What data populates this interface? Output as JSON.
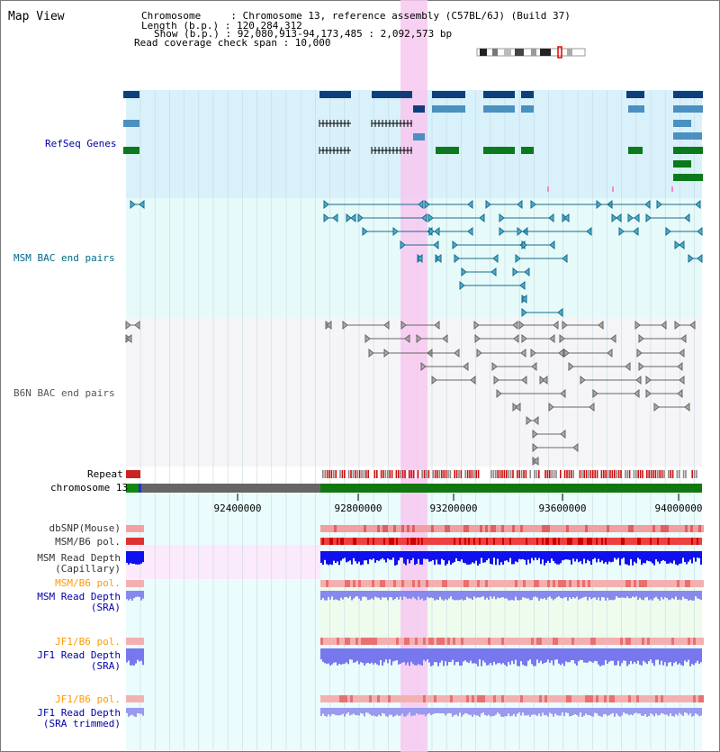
{
  "header": {
    "title": "Map View",
    "chromosome_line": "Chromosome     : Chromosome 13, reference assembly (C57BL/6J) (Build 37)",
    "length_line": "Length (b.p.) : 120,284,312",
    "show_line": "Show (b.p.) : 92,080,913-94,173,485 : 2,092,573 bp",
    "span_line": "Read coverage check span : 10,000"
  },
  "tracks": {
    "refseq": "RefSeq Genes",
    "msm_bac": "MSM BAC end pairs",
    "b6n_bac": "B6N BAC end pairs",
    "repeat": "Repeat",
    "chromosome": "chromosome 13",
    "dbsnp": "dbSNP(Mouse)",
    "msm_b6_pol": "MSM/B6 pol.",
    "msm_read_depth_cap_1": "MSM Read Depth",
    "msm_read_depth_cap_2": "(Capillary)",
    "msm_b6_pol_2": "MSM/B6 pol.",
    "msm_read_depth_sra_1": "MSM Read Depth",
    "msm_read_depth_sra_2": "(SRA)",
    "jf1_b6_pol": "JF1/B6 pol.",
    "jf1_read_depth_sra_1": "JF1 Read Depth",
    "jf1_read_depth_sra_2": "(SRA)",
    "jf1_b6_pol_2": "JF1/B6 pol.",
    "jf1_read_depth_trim_1": "JF1 Read Depth",
    "jf1_read_depth_trim_2": "(SRA trimmed)"
  },
  "axis": {
    "ticks": [
      "92400000",
      "92800000",
      "93200000",
      "93600000",
      "94000000"
    ]
  },
  "colors": {
    "refseq_label": "#0000aa",
    "msm_label": "#006a8a",
    "b6n_label": "#555555",
    "orange_label": "#ff9900",
    "blue_label": "#0000aa",
    "highlight": "#f7c8f0"
  }
}
